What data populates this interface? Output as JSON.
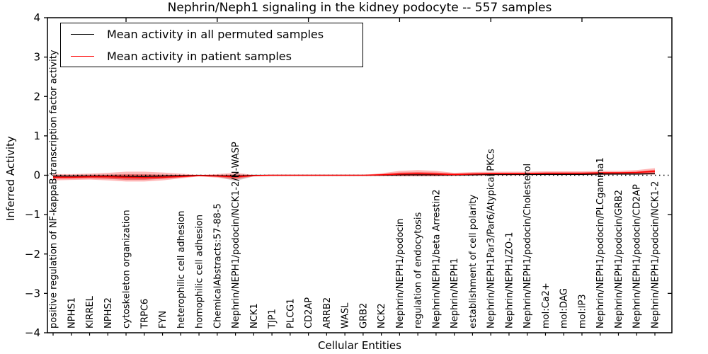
{
  "chart_data": {
    "type": "line",
    "title": "Nephrin/Neph1 signaling in the kidney podocyte -- 557 samples",
    "xlabel": "Cellular Entities",
    "ylabel": "Inferred Activity",
    "ylim": [
      -4,
      4
    ],
    "yticks": [
      4,
      3,
      2,
      1,
      0,
      -1,
      -2,
      -3,
      -4
    ],
    "right_yticks": [
      3,
      1,
      -1,
      -3
    ],
    "top_tick_positions": [
      5,
      10,
      15,
      20,
      25,
      30
    ],
    "grid": false,
    "zero_reference_line": true,
    "legend_position": "upper left",
    "categories": [
      "positive regulation of NF-kappaB transcription factor activity",
      "NPHS1",
      "KIRREL",
      "NPHS2",
      "cytoskeleton organization",
      "TRPC6",
      "FYN",
      "heterophilic cell adhesion",
      "homophilic cell adhesion",
      "ChemicalAbstracts:57-88-5",
      "Nephrin/NEPH1/podocin/NCK1-2/N-WASP",
      "NCK1",
      "TJP1",
      "PLCG1",
      "CD2AP",
      "ARRB2",
      "WASL",
      "GRB2",
      "NCK2",
      "Nephrin/NEPH1/podocin",
      "regulation of endocytosis",
      "Nephrin/NEPH1/beta Arrestin2",
      "Nephrin/NEPH1",
      "establishment of cell polarity",
      "Nephrin/NEPH1Par3/Par6/Atypical PKCs",
      "Nephrin/NEPH1/ZO-1",
      "Nephrin/NEPH1/podocin/Cholesterol",
      "mol:Ca2+",
      "mol:DAG",
      "mol:IP3",
      "Nephrin/NEPH1/podocin/PLCgamma1",
      "Nephrin/NEPH1/podocin/GRB2",
      "Nephrin/NEPH1/podocin/CD2AP",
      "Nephrin/NEPH1/podocin/NCK1-2"
    ],
    "series": [
      {
        "name": "Mean activity in all permuted samples",
        "color": "#000000",
        "width": 1.3,
        "values": [
          -0.02,
          -0.02,
          -0.02,
          -0.02,
          -0.03,
          -0.03,
          -0.02,
          -0.01,
          0,
          -0.01,
          -0.02,
          0,
          0,
          0,
          0,
          0,
          0,
          0,
          0,
          0.01,
          0.01,
          0.01,
          0.01,
          0.01,
          0.02,
          0.02,
          0.02,
          0.02,
          0.02,
          0.02,
          0.03,
          0.03,
          0.03,
          0.04
        ]
      },
      {
        "name": "Mean activity in patient samples",
        "color": "#ff0000",
        "width": 1.6,
        "values": [
          -0.05,
          -0.05,
          -0.04,
          -0.04,
          -0.05,
          -0.06,
          -0.05,
          -0.03,
          -0.01,
          -0.02,
          -0.04,
          -0.01,
          0,
          0,
          0,
          0,
          0,
          0,
          0.01,
          0.03,
          0.04,
          0.03,
          0.02,
          0.03,
          0.04,
          0.04,
          0.04,
          0.05,
          0.05,
          0.05,
          0.06,
          0.06,
          0.07,
          0.1
        ]
      }
    ],
    "bands": [
      {
        "name": "permuted-samples-range",
        "color": "#000000",
        "opacity": 0.15,
        "upper": [
          0.01,
          0.01,
          0.02,
          0.02,
          0.03,
          0.03,
          0.02,
          0.01,
          0.01,
          0.01,
          0.03,
          0.01,
          0.01,
          0.01,
          0.01,
          0.01,
          0.01,
          0.01,
          0.02,
          0.04,
          0.04,
          0.04,
          0.03,
          0.03,
          0.04,
          0.04,
          0.04,
          0.04,
          0.04,
          0.05,
          0.05,
          0.05,
          0.06,
          0.07
        ],
        "lower": [
          -0.06,
          -0.06,
          -0.07,
          -0.09,
          -0.12,
          -0.12,
          -0.09,
          -0.05,
          -0.02,
          -0.04,
          -0.15,
          -0.03,
          -0.02,
          -0.02,
          -0.02,
          -0.02,
          -0.02,
          -0.02,
          -0.02,
          -0.02,
          -0.02,
          -0.02,
          -0.01,
          -0.01,
          -0.01,
          -0.01,
          0,
          0,
          0,
          0,
          0,
          0.01,
          0.01,
          0.01
        ]
      },
      {
        "name": "patient-samples-range",
        "color": "#ff0000",
        "opacity": 0.28,
        "upper": [
          0.03,
          0.03,
          0.04,
          0.06,
          0.09,
          0.09,
          0.07,
          0.04,
          0.01,
          0.03,
          0.06,
          0.01,
          0.01,
          0.01,
          0.01,
          0.01,
          0.01,
          0.01,
          0.05,
          0.11,
          0.13,
          0.11,
          0.06,
          0.08,
          0.09,
          0.09,
          0.09,
          0.1,
          0.1,
          0.1,
          0.11,
          0.11,
          0.13,
          0.18
        ],
        "lower": [
          -0.13,
          -0.12,
          -0.11,
          -0.13,
          -0.16,
          -0.16,
          -0.13,
          -0.08,
          -0.03,
          -0.06,
          -0.12,
          -0.03,
          -0.02,
          -0.02,
          -0.02,
          -0.02,
          -0.02,
          -0.02,
          -0.02,
          -0.03,
          -0.03,
          -0.03,
          -0.02,
          -0.01,
          0,
          0,
          0,
          0.01,
          0.01,
          0.01,
          0.01,
          0.02,
          0.02,
          0.02
        ]
      },
      {
        "name": "patient-samples-core-range",
        "color": "#ff0000",
        "opacity": 0.38,
        "upper": [
          -0.01,
          -0.01,
          0,
          0.01,
          0.02,
          0.02,
          0.01,
          0,
          0,
          0,
          0.01,
          0,
          0,
          0,
          0,
          0,
          0,
          0,
          0.03,
          0.07,
          0.08,
          0.07,
          0.04,
          0.05,
          0.06,
          0.06,
          0.06,
          0.07,
          0.07,
          0.07,
          0.08,
          0.08,
          0.09,
          0.14
        ],
        "lower": [
          -0.09,
          -0.09,
          -0.08,
          -0.09,
          -0.11,
          -0.11,
          -0.09,
          -0.06,
          -0.02,
          -0.04,
          -0.08,
          -0.02,
          -0.01,
          -0.01,
          -0.01,
          -0.01,
          -0.01,
          -0.01,
          -0.01,
          -0.01,
          -0.01,
          -0.01,
          -0.01,
          0,
          0.01,
          0.01,
          0.01,
          0.02,
          0.02,
          0.02,
          0.03,
          0.03,
          0.04,
          0.05
        ]
      }
    ],
    "legend": {
      "entries": [
        {
          "label": "Mean activity in all permuted samples",
          "color": "#000000"
        },
        {
          "label": "Mean activity in patient samples",
          "color": "#ff0000"
        }
      ]
    }
  }
}
